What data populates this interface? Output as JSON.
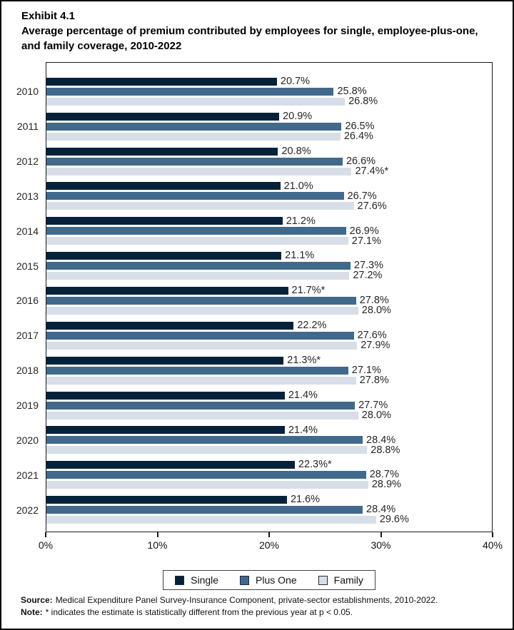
{
  "title": {
    "exhibit": "Exhibit 4.1",
    "text": "Average percentage of premium contributed by employees for single, employee-plus-one, and family coverage, 2010-2022"
  },
  "chart_data": {
    "type": "bar",
    "orientation": "horizontal",
    "title": "Average percentage of premium contributed by employees for single, employee-plus-one, and family coverage, 2010-2022",
    "categories": [
      "2010",
      "2011",
      "2012",
      "2013",
      "2014",
      "2015",
      "2016",
      "2017",
      "2018",
      "2019",
      "2020",
      "2021",
      "2022"
    ],
    "series": [
      {
        "name": "Single",
        "color": "#05223A",
        "values": [
          20.7,
          20.9,
          20.8,
          21.0,
          21.2,
          21.1,
          21.7,
          22.2,
          21.3,
          21.4,
          21.4,
          22.3,
          21.6
        ],
        "labels": [
          "20.7%",
          "20.9%",
          "20.8%",
          "21.0%",
          "21.2%",
          "21.1%",
          "21.7%*",
          "22.2%",
          "21.3%*",
          "21.4%",
          "21.4%",
          "22.3%*",
          "21.6%"
        ]
      },
      {
        "name": "Plus One",
        "color": "#40698C",
        "values": [
          25.8,
          26.5,
          26.6,
          26.7,
          26.9,
          27.3,
          27.8,
          27.6,
          27.1,
          27.7,
          28.4,
          28.7,
          28.4
        ],
        "labels": [
          "25.8%",
          "26.5%",
          "26.6%",
          "26.7%",
          "26.9%",
          "27.3%",
          "27.8%",
          "27.6%",
          "27.1%",
          "27.7%",
          "28.4%",
          "28.7%",
          "28.4%"
        ]
      },
      {
        "name": "Family",
        "color": "#D8DEE7",
        "values": [
          26.8,
          26.4,
          27.4,
          27.6,
          27.1,
          27.2,
          28.0,
          27.9,
          27.8,
          28.0,
          28.8,
          28.9,
          29.6
        ],
        "labels": [
          "26.8%",
          "26.4%",
          "27.4%*",
          "27.6%",
          "27.1%",
          "27.2%",
          "28.0%",
          "27.9%",
          "27.8%",
          "28.0%",
          "28.8%",
          "28.9%",
          "29.6%"
        ]
      }
    ],
    "xlim": [
      0,
      40
    ],
    "x_ticks": [
      {
        "value": 0,
        "label": "0%"
      },
      {
        "value": 10,
        "label": "10%"
      },
      {
        "value": 20,
        "label": "20%"
      },
      {
        "value": 30,
        "label": "30%"
      },
      {
        "value": 40,
        "label": "40%"
      }
    ],
    "grid": false,
    "legend": {
      "position": "bottom-center",
      "entries": [
        "Single",
        "Plus One",
        "Family"
      ]
    }
  },
  "footer": {
    "source_label": "Source:",
    "source_text": "Medical Expenditure Panel Survey-Insurance Component, private-sector establishments, 2010-2022.",
    "note_label": "Note:",
    "note_text": "* indicates the estimate is statistically different from the previous year at p < 0.05."
  }
}
